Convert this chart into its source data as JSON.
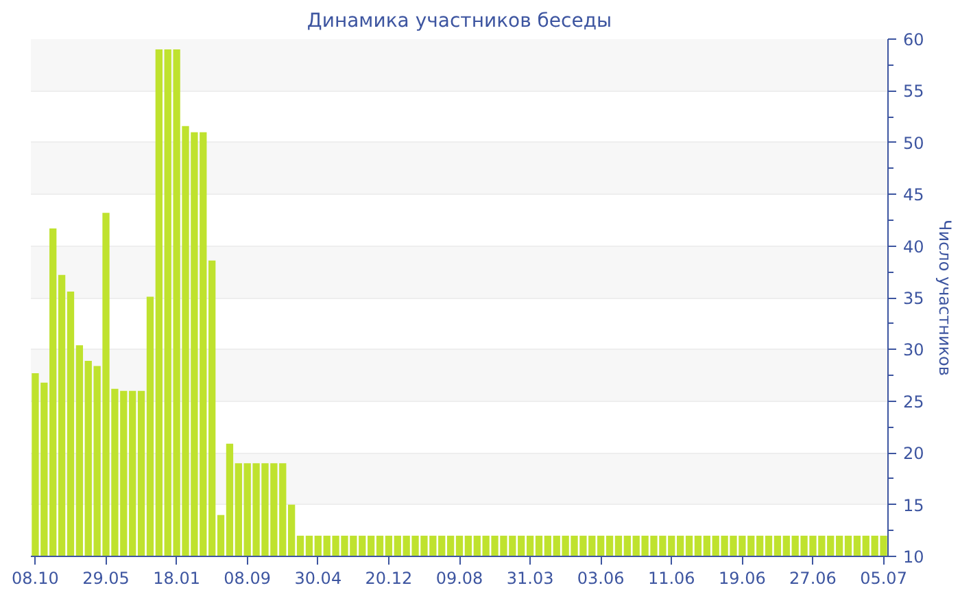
{
  "chart_data": {
    "type": "bar",
    "title": "Динамика участников беседы",
    "ylabel": "Число участников",
    "categories": [
      "08.10",
      null,
      null,
      null,
      null,
      null,
      null,
      null,
      "29.05",
      null,
      null,
      null,
      null,
      null,
      null,
      null,
      "18.01",
      null,
      null,
      null,
      null,
      null,
      null,
      null,
      "08.09",
      null,
      null,
      null,
      null,
      null,
      null,
      null,
      "30.04",
      null,
      null,
      null,
      null,
      null,
      null,
      null,
      "20.12",
      null,
      null,
      null,
      null,
      null,
      null,
      null,
      "09.08",
      null,
      null,
      null,
      null,
      null,
      null,
      null,
      "31.03",
      null,
      null,
      null,
      null,
      null,
      null,
      null,
      "03.06",
      null,
      null,
      null,
      null,
      null,
      null,
      null,
      "11.06",
      null,
      null,
      null,
      null,
      null,
      null,
      null,
      "19.06",
      null,
      null,
      null,
      null,
      null,
      null,
      null,
      "27.06",
      null,
      null,
      null,
      null,
      null,
      null,
      null,
      "05.07"
    ],
    "values": [
      27.7,
      26.8,
      41.7,
      37.2,
      35.6,
      30.4,
      28.9,
      28.4,
      43.2,
      26.2,
      26,
      26,
      26,
      35.1,
      59,
      59,
      59,
      51.6,
      51,
      51,
      38.6,
      14,
      20.9,
      19,
      19,
      19,
      19,
      19,
      19,
      15,
      12,
      12,
      12,
      12,
      12,
      12,
      12,
      12,
      12,
      12,
      12,
      12,
      12,
      12,
      12,
      12,
      12,
      12,
      12,
      12,
      12,
      12,
      12,
      12,
      12,
      12,
      12,
      12,
      12,
      12,
      12,
      12,
      12,
      12,
      12,
      12,
      12,
      12,
      12,
      12,
      12,
      12,
      12,
      12,
      12,
      12,
      12,
      12,
      12,
      12,
      12,
      12,
      12,
      12,
      12,
      12,
      12,
      12,
      12,
      12,
      12,
      12,
      12,
      12,
      12,
      12,
      12
    ],
    "color": "#bfe22e",
    "ylim": [
      10,
      60
    ],
    "yticks": [
      10,
      15,
      20,
      25,
      30,
      35,
      40,
      45,
      50,
      55,
      60
    ],
    "grid": "y"
  }
}
